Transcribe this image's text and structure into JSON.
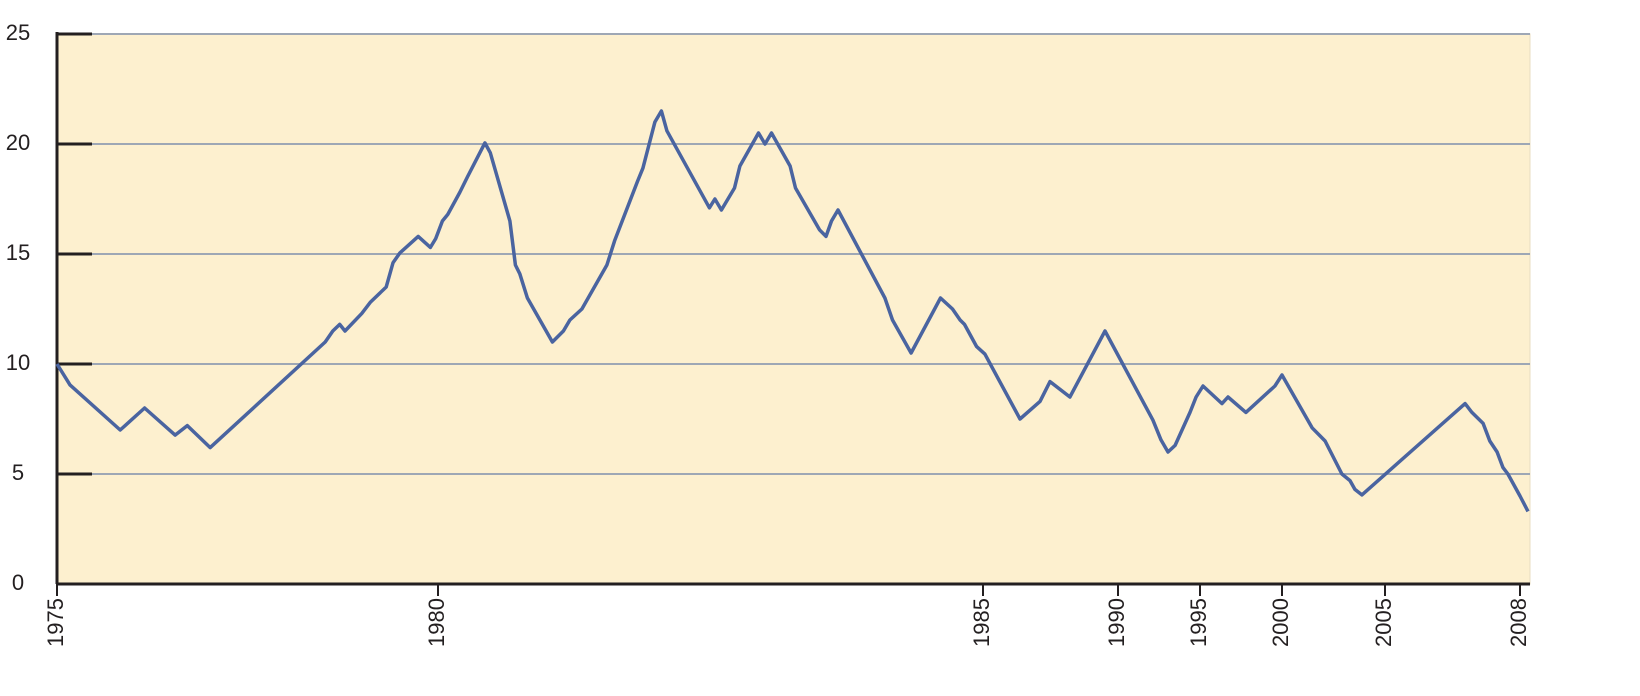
{
  "chart_data": {
    "type": "line",
    "x": [
      1975.0,
      1975.17,
      1975.83,
      1976.15,
      1976.55,
      1976.71,
      1977.01,
      1978.52,
      1978.62,
      1978.71,
      1978.78,
      1979.0,
      1979.11,
      1979.32,
      1979.41,
      1979.5,
      1979.74,
      1979.9,
      1979.97,
      1980.04,
      1980.09,
      1980.2,
      1980.27,
      1980.43,
      1980.48,
      1980.66,
      1980.71,
      1980.75,
      1980.82,
      1981.05,
      1981.15,
      1981.21,
      1981.32,
      1981.55,
      1981.62,
      1981.83,
      1981.88,
      1981.99,
      1982.05,
      1982.1,
      1982.49,
      1982.54,
      1982.6,
      1982.72,
      1982.77,
      1982.94,
      1983.0,
      1983.06,
      1983.23,
      1983.28,
      1983.5,
      1983.56,
      1983.61,
      1983.67,
      1984.1,
      1984.17,
      1984.34,
      1984.61,
      1984.72,
      1984.79,
      1984.83,
      1984.94,
      1985.07,
      1986.37,
      1987.11,
      1987.48,
      1988.22,
      1989.52,
      1992.13,
      1992.62,
      1993.05,
      1993.48,
      1994.39,
      1994.76,
      1995.18,
      1996.34,
      1996.71,
      1997.8,
      1999.57,
      2000.0,
      2001.46,
      2002.09,
      2002.91,
      2003.3,
      2003.54,
      2003.88,
      2006.78,
      2006.93,
      2007.18,
      2007.33,
      2007.49,
      2007.62,
      2007.73,
      2008.0,
      2008.16
    ],
    "series": [
      {
        "color": "#4a64a0",
        "values": [
          10.0,
          9.05,
          7.0,
          8.0,
          6.77,
          7.2,
          6.2,
          11.0,
          11.5,
          11.8,
          11.5,
          12.3,
          12.8,
          13.5,
          14.6,
          15.05,
          15.8,
          15.3,
          15.7,
          16.5,
          16.8,
          17.8,
          18.5,
          20.05,
          19.6,
          16.5,
          14.5,
          14.1,
          13.0,
          11.0,
          11.5,
          12.0,
          12.5,
          14.5,
          15.6,
          18.3,
          18.9,
          21.0,
          21.5,
          20.6,
          17.1,
          17.5,
          17.0,
          18.0,
          19.0,
          20.5,
          20.0,
          20.5,
          19.0,
          18.0,
          16.1,
          15.8,
          16.5,
          17.0,
          13.0,
          12.0,
          10.5,
          13.0,
          12.5,
          12.0,
          11.8,
          10.8,
          10.45,
          7.5,
          8.3,
          9.2,
          8.5,
          11.5,
          7.45,
          6.55,
          6.0,
          6.3,
          7.8,
          8.5,
          9.0,
          8.2,
          8.5,
          7.8,
          9.0,
          9.5,
          7.1,
          6.5,
          5.0,
          4.7,
          4.3,
          4.05,
          8.2,
          7.8,
          7.3,
          6.5,
          6.0,
          5.3,
          5.0,
          4.0,
          3.3
        ]
      }
    ],
    "xlim": [
      1975,
      2008.2
    ],
    "xticks": [
      1975,
      1980,
      1985,
      1990,
      1995,
      2000,
      2005,
      2008
    ],
    "ylim": [
      0,
      25
    ],
    "yticks": [
      0,
      5,
      10,
      15,
      20,
      25
    ],
    "grid": true,
    "background": "#fdf0cf"
  }
}
